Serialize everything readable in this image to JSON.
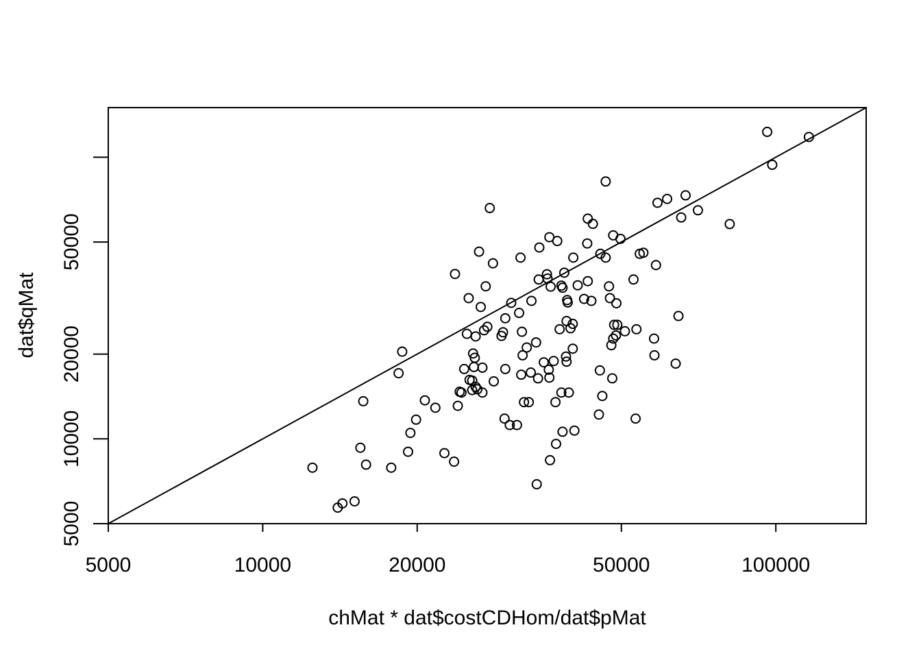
{
  "chart_data": {
    "type": "scatter",
    "xlabel": "chMat * dat$costCDHom/dat$pMat",
    "ylabel": "dat$qMat",
    "x_scale": "log",
    "y_scale": "log",
    "xlim": [
      5000,
      150000
    ],
    "ylim": [
      5000,
      150000
    ],
    "x_ticks": [
      5000,
      10000,
      20000,
      50000,
      100000
    ],
    "x_tick_labels": [
      "5000",
      "10000",
      "20000",
      "50000",
      "100000"
    ],
    "y_ticks": [
      5000,
      10000,
      20000,
      50000,
      100000
    ],
    "y_tick_labels": [
      "5000",
      "10000",
      "20000",
      "50000",
      ""
    ],
    "reference_line": "y = x",
    "points": [
      [
        12500,
        7900
      ],
      [
        14000,
        5700
      ],
      [
        14300,
        5900
      ],
      [
        15100,
        6000
      ],
      [
        15500,
        9300
      ],
      [
        15700,
        13600
      ],
      [
        15900,
        8100
      ],
      [
        17800,
        7900
      ],
      [
        18400,
        17100
      ],
      [
        18700,
        20400
      ],
      [
        19200,
        9000
      ],
      [
        19400,
        10500
      ],
      [
        19900,
        11700
      ],
      [
        20700,
        13700
      ],
      [
        21700,
        12900
      ],
      [
        22600,
        8900
      ],
      [
        23600,
        8300
      ],
      [
        23700,
        38500
      ],
      [
        24000,
        13100
      ],
      [
        24200,
        14700
      ],
      [
        24400,
        14600
      ],
      [
        24700,
        17700
      ],
      [
        25000,
        23600
      ],
      [
        25200,
        31600
      ],
      [
        25300,
        16200
      ],
      [
        25600,
        16100
      ],
      [
        25700,
        20100
      ],
      [
        25800,
        18000
      ],
      [
        25900,
        19400
      ],
      [
        25600,
        14900
      ],
      [
        26000,
        15300
      ],
      [
        26000,
        23100
      ],
      [
        26200,
        15000
      ],
      [
        26400,
        46200
      ],
      [
        26600,
        29400
      ],
      [
        26800,
        14600
      ],
      [
        26800,
        17900
      ],
      [
        27000,
        24300
      ],
      [
        27200,
        34800
      ],
      [
        27400,
        25000
      ],
      [
        27700,
        66000
      ],
      [
        28100,
        42000
      ],
      [
        28200,
        16000
      ],
      [
        29200,
        23200
      ],
      [
        29400,
        23900
      ],
      [
        29600,
        11800
      ],
      [
        29700,
        17700
      ],
      [
        29700,
        26800
      ],
      [
        30300,
        11200
      ],
      [
        30500,
        30400
      ],
      [
        31300,
        11200
      ],
      [
        31600,
        28000
      ],
      [
        31800,
        44000
      ],
      [
        31900,
        16900
      ],
      [
        32000,
        24000
      ],
      [
        32100,
        19800
      ],
      [
        32300,
        13500
      ],
      [
        32700,
        21100
      ],
      [
        33000,
        13500
      ],
      [
        33300,
        17200
      ],
      [
        33400,
        30900
      ],
      [
        34100,
        22000
      ],
      [
        34200,
        6900
      ],
      [
        34400,
        16400
      ],
      [
        34500,
        36800
      ],
      [
        34600,
        47800
      ],
      [
        35300,
        18700
      ],
      [
        35800,
        38400
      ],
      [
        35900,
        37100
      ],
      [
        36100,
        17600
      ],
      [
        36300,
        8400
      ],
      [
        36200,
        52000
      ],
      [
        36200,
        16500
      ],
      [
        36400,
        34700
      ],
      [
        36900,
        18900
      ],
      [
        37200,
        13500
      ],
      [
        37300,
        9600
      ],
      [
        37500,
        50400
      ],
      [
        37900,
        24500
      ],
      [
        38200,
        14600
      ],
      [
        38200,
        35000
      ],
      [
        38400,
        34400
      ],
      [
        38400,
        10600
      ],
      [
        38700,
        38900
      ],
      [
        39000,
        19600
      ],
      [
        39100,
        26200
      ],
      [
        39100,
        18800
      ],
      [
        39200,
        31100
      ],
      [
        39300,
        30500
      ],
      [
        39500,
        14600
      ],
      [
        39800,
        24700
      ],
      [
        40200,
        25600
      ],
      [
        40200,
        20900
      ],
      [
        40300,
        44000
      ],
      [
        40500,
        10700
      ],
      [
        41100,
        35100
      ],
      [
        42300,
        31400
      ],
      [
        42900,
        49400
      ],
      [
        43000,
        36300
      ],
      [
        43000,
        60500
      ],
      [
        43700,
        30900
      ],
      [
        44000,
        58000
      ],
      [
        45200,
        12200
      ],
      [
        45400,
        17500
      ],
      [
        45500,
        45400
      ],
      [
        45900,
        14200
      ],
      [
        46600,
        44000
      ],
      [
        46600,
        82000
      ],
      [
        47300,
        34800
      ],
      [
        47500,
        31600
      ],
      [
        47800,
        21500
      ],
      [
        48000,
        16400
      ],
      [
        48200,
        22700
      ],
      [
        48200,
        52800
      ],
      [
        48400,
        25400
      ],
      [
        48800,
        23300
      ],
      [
        48900,
        30300
      ],
      [
        49100,
        25400
      ],
      [
        49800,
        51300
      ],
      [
        50800,
        24100
      ],
      [
        52800,
        36800
      ],
      [
        53300,
        11800
      ],
      [
        53500,
        24500
      ],
      [
        54300,
        45400
      ],
      [
        55200,
        45800
      ],
      [
        57900,
        22700
      ],
      [
        58000,
        19800
      ],
      [
        58400,
        41400
      ],
      [
        58800,
        68900
      ],
      [
        61400,
        71100
      ],
      [
        63800,
        18500
      ],
      [
        64600,
        27300
      ],
      [
        65400,
        61100
      ],
      [
        66700,
        73200
      ],
      [
        70500,
        64800
      ],
      [
        81300,
        57900
      ],
      [
        96200,
        123000
      ],
      [
        98400,
        94000
      ],
      [
        116000,
        118000
      ]
    ]
  }
}
